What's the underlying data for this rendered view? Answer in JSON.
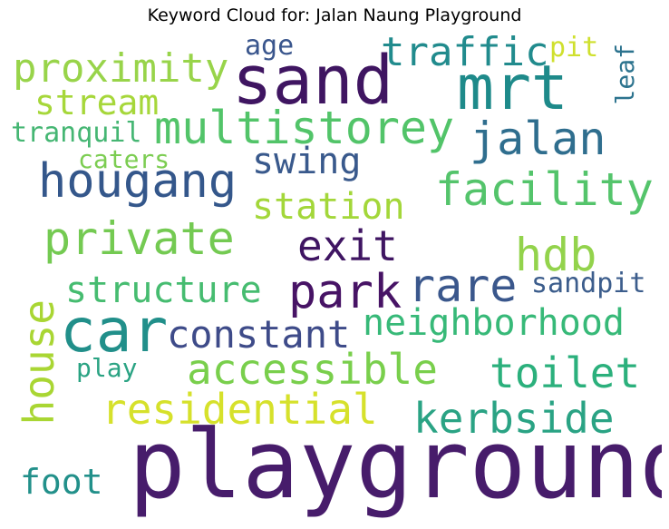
{
  "title": "Keyword Cloud for: Jalan Naung Playground",
  "words": [
    {
      "text": "playground",
      "color": "#471c6b"
    },
    {
      "text": "sand",
      "color": "#3f1561"
    },
    {
      "text": "mrt",
      "color": "#1e8a8a"
    },
    {
      "text": "car",
      "color": "#218f8a"
    },
    {
      "text": "multistorey",
      "color": "#52c469"
    },
    {
      "text": "proximity",
      "color": "#98d44a"
    },
    {
      "text": "traffic",
      "color": "#218b8d"
    },
    {
      "text": "hougang",
      "color": "#34578b"
    },
    {
      "text": "facility",
      "color": "#54c46b"
    },
    {
      "text": "jalan",
      "color": "#2f6e8e"
    },
    {
      "text": "private",
      "color": "#74ca52"
    },
    {
      "text": "exit",
      "color": "#3f1562"
    },
    {
      "text": "hdb",
      "color": "#93d34c"
    },
    {
      "text": "park",
      "color": "#471365"
    },
    {
      "text": "rare",
      "color": "#3a578c"
    },
    {
      "text": "neighborhood",
      "color": "#37b978"
    },
    {
      "text": "constant",
      "color": "#3e4b89"
    },
    {
      "text": "accessible",
      "color": "#79cf4c"
    },
    {
      "text": "toilet",
      "color": "#2bb07c"
    },
    {
      "text": "residential",
      "color": "#d6e12b"
    },
    {
      "text": "kerbside",
      "color": "#2aa384"
    },
    {
      "text": "house",
      "color": "#a9d633"
    },
    {
      "text": "stream",
      "color": "#a6d73a"
    },
    {
      "text": "swing",
      "color": "#39598c"
    },
    {
      "text": "station",
      "color": "#a3d73a"
    },
    {
      "text": "structure",
      "color": "#46bc70"
    },
    {
      "text": "foot",
      "color": "#22908a"
    },
    {
      "text": "tranquil",
      "color": "#45b673"
    },
    {
      "text": "age",
      "color": "#3a568d"
    },
    {
      "text": "pit",
      "color": "#cfe02e"
    },
    {
      "text": "leaf",
      "color": "#2c738e"
    },
    {
      "text": "caters",
      "color": "#7ccd52"
    },
    {
      "text": "sandpit",
      "color": "#3c5d8c"
    },
    {
      "text": "play",
      "color": "#2aa383"
    }
  ]
}
